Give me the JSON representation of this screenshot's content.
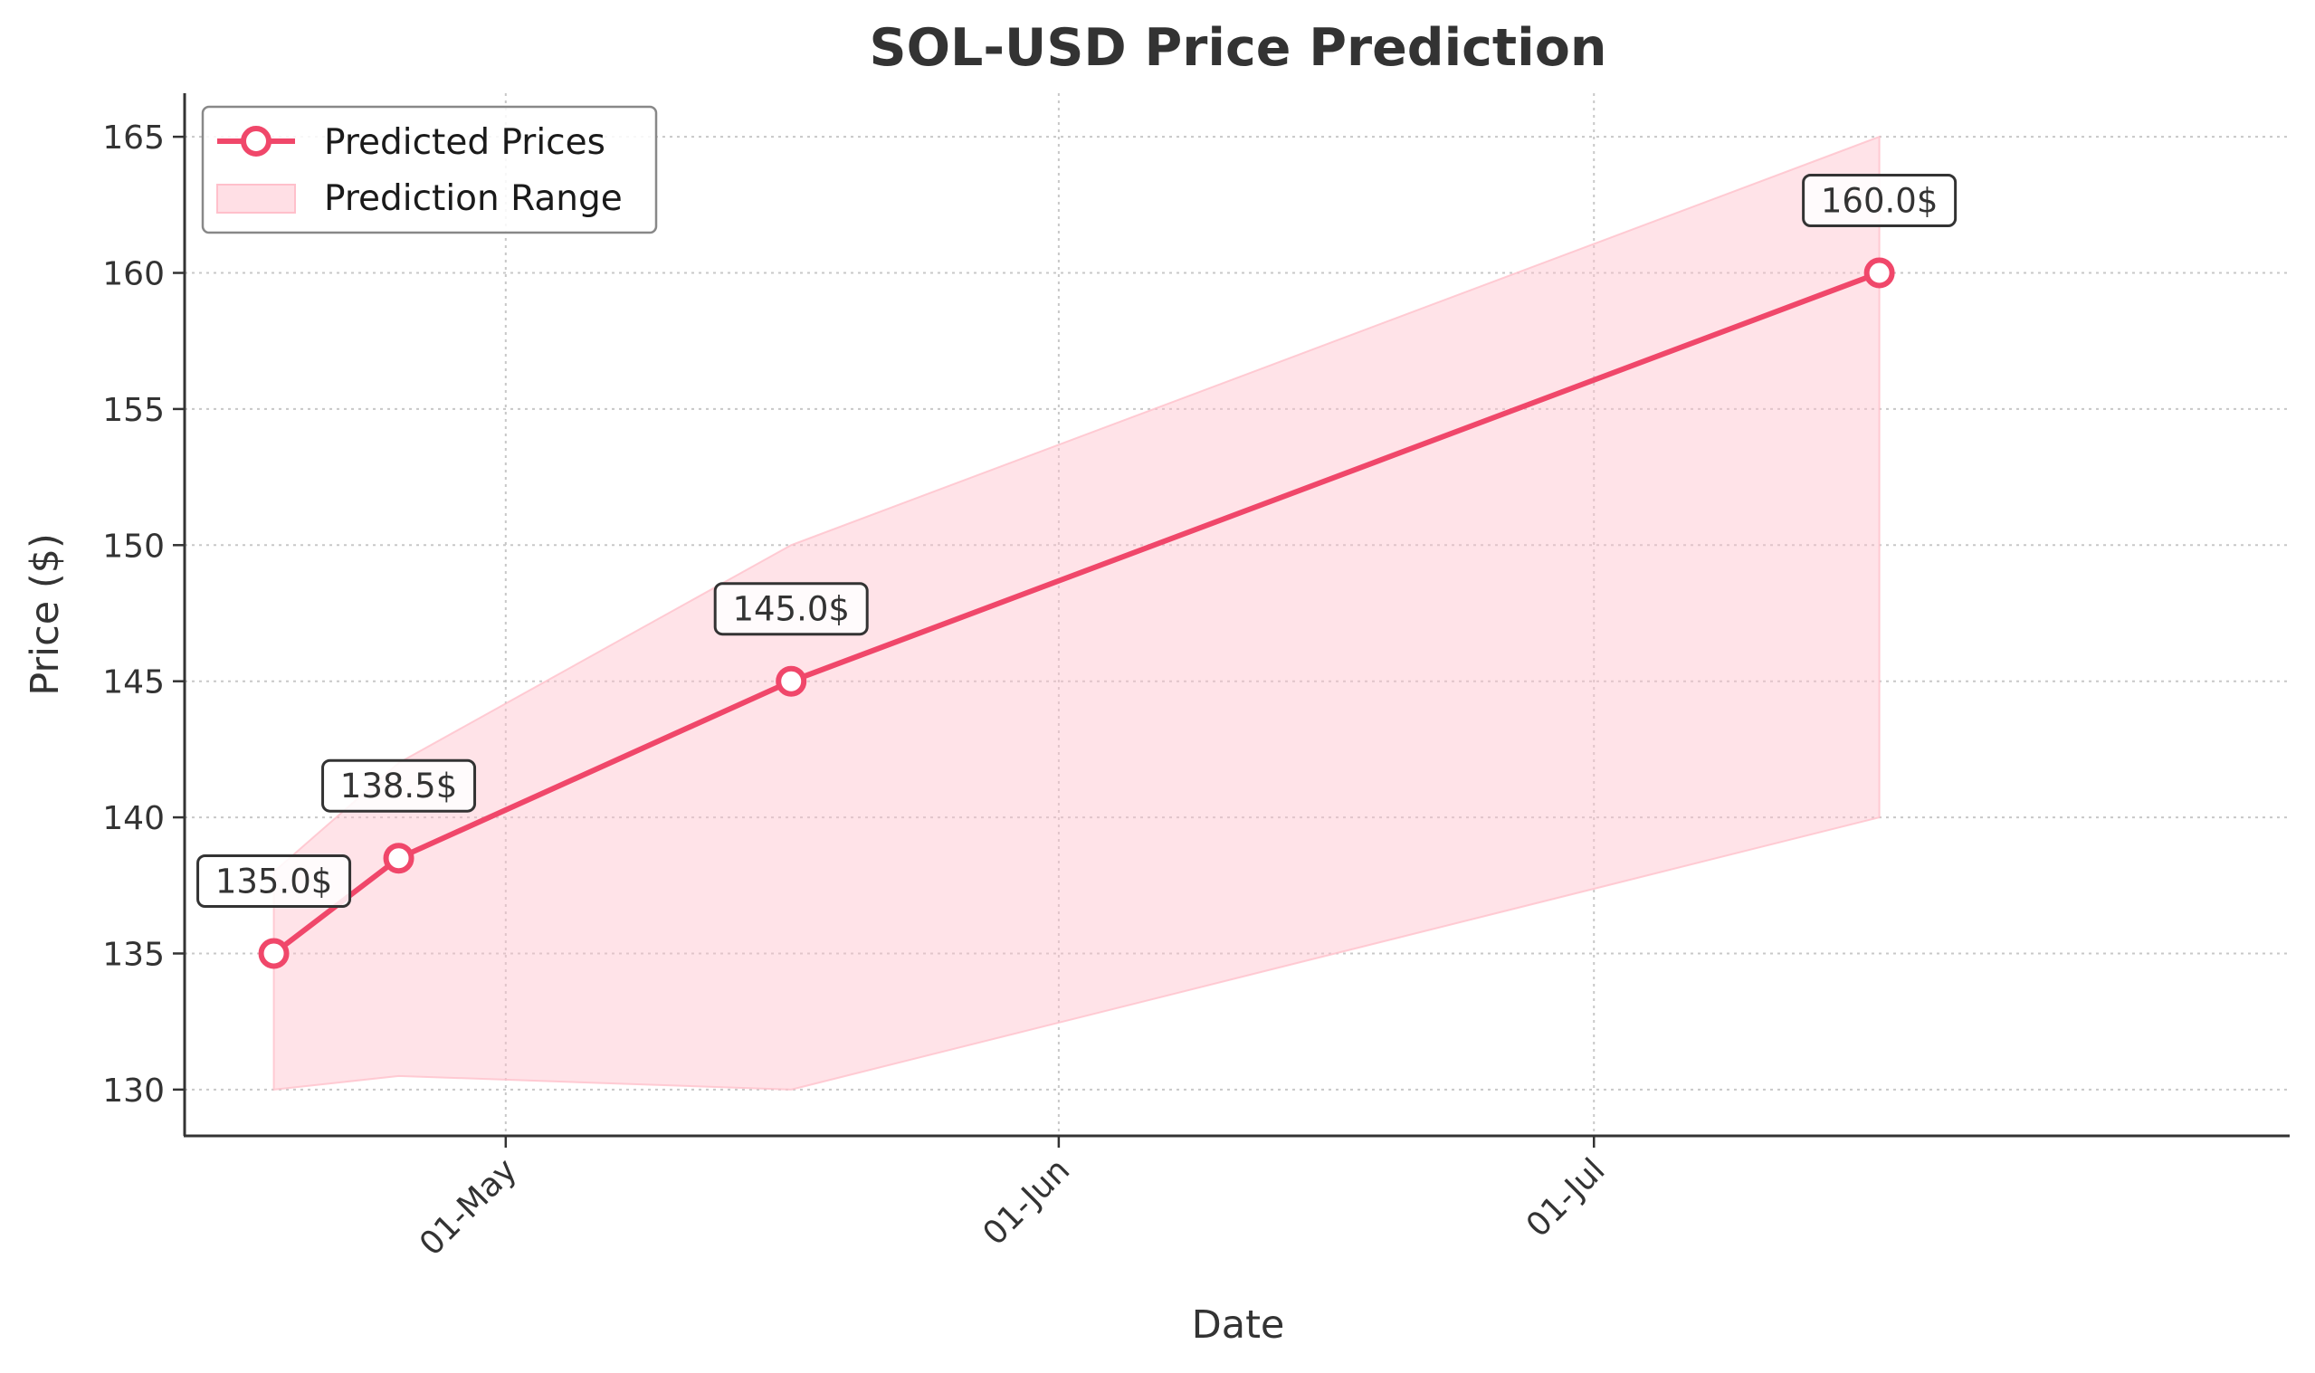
{
  "chart_data": {
    "type": "line",
    "title": "SOL-USD Price Prediction",
    "xlabel": "Date",
    "ylabel": "Price ($)",
    "x_tick_labels": [
      {
        "date": "2025-05-01",
        "label": "01-May"
      },
      {
        "date": "2025-06-01",
        "label": "01-Jun"
      },
      {
        "date": "2025-07-01",
        "label": "01-Jul"
      }
    ],
    "yticks": [
      130,
      135,
      140,
      145,
      150,
      155,
      160,
      165
    ],
    "xlim": [
      "2025-04-13",
      "2025-08-09"
    ],
    "ylim": [
      128.3,
      166.6
    ],
    "grid": true,
    "legend_position": "top-left",
    "series": [
      {
        "name": "Predicted Prices",
        "color": "#f0476a",
        "points": [
          {
            "date": "2025-04-18",
            "value": 135.0,
            "label": "135.0$"
          },
          {
            "date": "2025-04-25",
            "value": 138.5,
            "label": "138.5$"
          },
          {
            "date": "2025-05-17",
            "value": 145.0,
            "label": "145.0$"
          },
          {
            "date": "2025-07-17",
            "value": 160.0,
            "label": "160.0$"
          }
        ]
      }
    ],
    "range": {
      "name": "Prediction Range",
      "color": "#ffc0cb",
      "points": [
        {
          "date": "2025-04-18",
          "low": 130.0,
          "high": 138.0
        },
        {
          "date": "2025-04-25",
          "low": 130.5,
          "high": 142.0
        },
        {
          "date": "2025-05-17",
          "low": 130.0,
          "high": 150.0
        },
        {
          "date": "2025-07-17",
          "low": 140.0,
          "high": 165.0
        }
      ]
    }
  }
}
